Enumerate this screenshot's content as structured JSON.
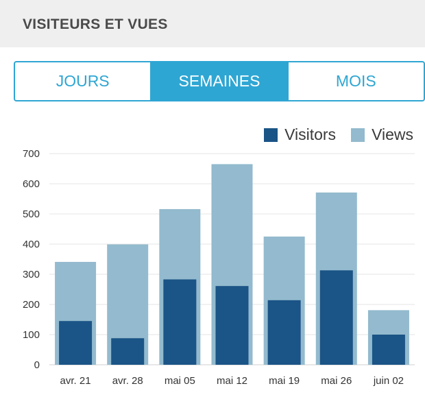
{
  "header": {
    "title": "VISITEURS ET VUES"
  },
  "tabs": [
    {
      "label": "JOURS",
      "active": false
    },
    {
      "label": "SEMAINES",
      "active": true
    },
    {
      "label": "MOIS",
      "active": false
    }
  ],
  "colors": {
    "accent": "#2ea6d3",
    "visitors": "#1b5486",
    "views": "#93bace",
    "grid": "#e4e4e4"
  },
  "chart_data": {
    "type": "bar",
    "categories": [
      "avr. 21",
      "avr. 28",
      "mai 05",
      "mai 12",
      "mai 19",
      "mai 26",
      "juin 02"
    ],
    "series": [
      {
        "name": "Visitors",
        "values": [
          145,
          88,
          283,
          261,
          214,
          313,
          100
        ]
      },
      {
        "name": "Views",
        "values": [
          341,
          399,
          516,
          665,
          425,
          571,
          181
        ]
      }
    ],
    "yticks": [
      0,
      100,
      200,
      300,
      400,
      500,
      600,
      700
    ],
    "ylim": [
      0,
      700
    ],
    "grid": true,
    "legend": "top-right"
  }
}
